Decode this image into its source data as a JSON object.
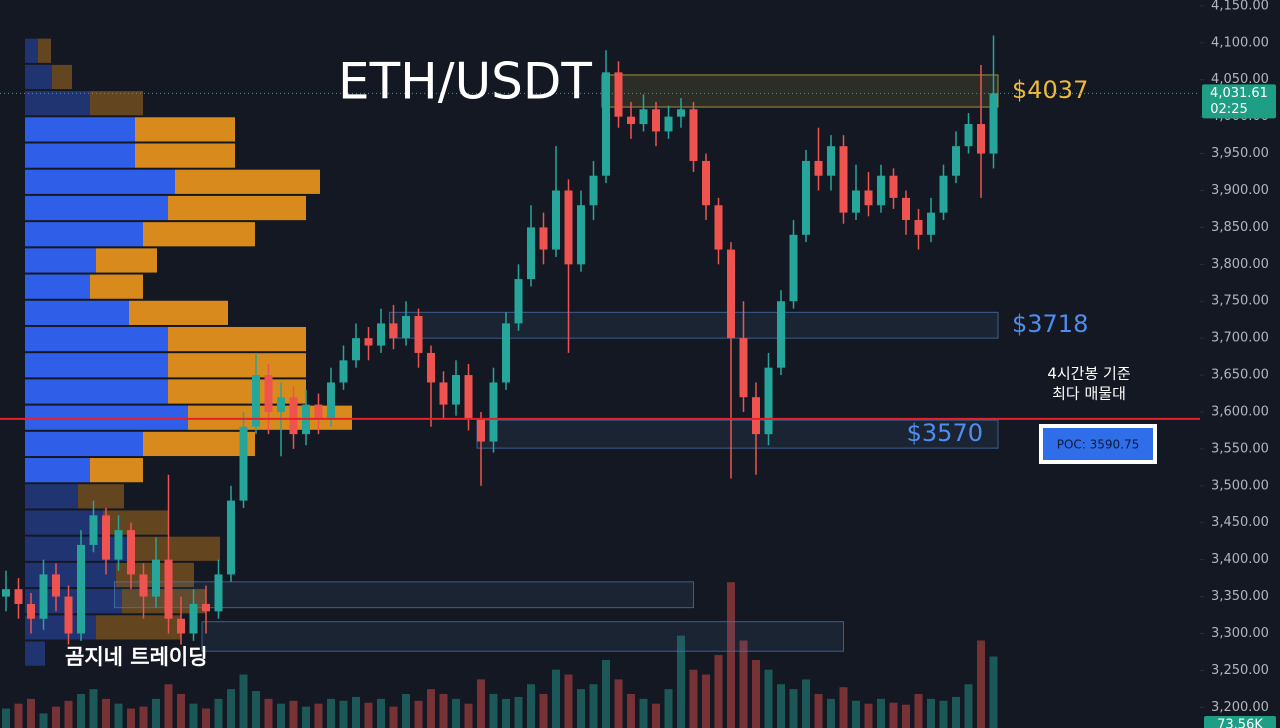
{
  "chart_data": {
    "type": "candlestick",
    "title": "ETH/USDT",
    "watermark": "곰지네 트레이딩",
    "ylim": [
      3172,
      4158
    ],
    "yticks": [
      {
        "value": 3200,
        "label": "3,200.00"
      },
      {
        "value": 3250,
        "label": "3,250.00"
      },
      {
        "value": 3300,
        "label": "3,300.00"
      },
      {
        "value": 3350,
        "label": "3,350.00"
      },
      {
        "value": 3400,
        "label": "3,400.00"
      },
      {
        "value": 3450,
        "label": "3,450.00"
      },
      {
        "value": 3500,
        "label": "3,500.00"
      },
      {
        "value": 3550,
        "label": "3,550.00"
      },
      {
        "value": 3600,
        "label": "3,600.00"
      },
      {
        "value": 3650,
        "label": "3,650.00"
      },
      {
        "value": 3700,
        "label": "3,700.00"
      },
      {
        "value": 3750,
        "label": "3,750.00"
      },
      {
        "value": 3800,
        "label": "3,800.00"
      },
      {
        "value": 3850,
        "label": "3,850.00"
      },
      {
        "value": 3900,
        "label": "3,900.00"
      },
      {
        "value": 3950,
        "label": "3,950.00"
      },
      {
        "value": 4000,
        "label": "4,000.00"
      },
      {
        "value": 4050,
        "label": "4,050.00"
      },
      {
        "value": 4100,
        "label": "4,100.00"
      },
      {
        "value": 4150,
        "label": "4,150.00"
      }
    ],
    "up_color": "#26a69a",
    "down_color": "#ef5350",
    "ohlc": [
      [
        3350,
        3385,
        3330,
        3360
      ],
      [
        3360,
        3375,
        3320,
        3340
      ],
      [
        3340,
        3355,
        3300,
        3320
      ],
      [
        3320,
        3400,
        3305,
        3380
      ],
      [
        3380,
        3395,
        3330,
        3350
      ],
      [
        3350,
        3365,
        3285,
        3300
      ],
      [
        3300,
        3440,
        3290,
        3420
      ],
      [
        3420,
        3480,
        3410,
        3460
      ],
      [
        3460,
        3470,
        3380,
        3400
      ],
      [
        3400,
        3460,
        3385,
        3440
      ],
      [
        3440,
        3450,
        3360,
        3380
      ],
      [
        3380,
        3395,
        3320,
        3350
      ],
      [
        3350,
        3430,
        3335,
        3400
      ],
      [
        3400,
        3515,
        3300,
        3320
      ],
      [
        3320,
        3350,
        3285,
        3300
      ],
      [
        3300,
        3360,
        3290,
        3340
      ],
      [
        3340,
        3365,
        3300,
        3330
      ],
      [
        3330,
        3400,
        3320,
        3380
      ],
      [
        3380,
        3500,
        3370,
        3480
      ],
      [
        3480,
        3600,
        3470,
        3580
      ],
      [
        3580,
        3680,
        3570,
        3650
      ],
      [
        3650,
        3665,
        3570,
        3600
      ],
      [
        3600,
        3640,
        3540,
        3620
      ],
      [
        3620,
        3635,
        3550,
        3570
      ],
      [
        3570,
        3630,
        3555,
        3610
      ],
      [
        3610,
        3625,
        3570,
        3590
      ],
      [
        3590,
        3660,
        3580,
        3640
      ],
      [
        3640,
        3690,
        3630,
        3670
      ],
      [
        3670,
        3720,
        3660,
        3700
      ],
      [
        3700,
        3715,
        3670,
        3690
      ],
      [
        3690,
        3740,
        3680,
        3720
      ],
      [
        3720,
        3745,
        3685,
        3700
      ],
      [
        3700,
        3750,
        3690,
        3730
      ],
      [
        3730,
        3740,
        3660,
        3680
      ],
      [
        3680,
        3690,
        3580,
        3640
      ],
      [
        3640,
        3655,
        3590,
        3610
      ],
      [
        3610,
        3670,
        3595,
        3650
      ],
      [
        3650,
        3665,
        3575,
        3590
      ],
      [
        3590,
        3600,
        3500,
        3560
      ],
      [
        3560,
        3660,
        3545,
        3640
      ],
      [
        3640,
        3735,
        3630,
        3720
      ],
      [
        3720,
        3800,
        3710,
        3780
      ],
      [
        3780,
        3880,
        3770,
        3850
      ],
      [
        3850,
        3870,
        3800,
        3820
      ],
      [
        3820,
        3960,
        3810,
        3900
      ],
      [
        3900,
        3915,
        3680,
        3800
      ],
      [
        3800,
        3900,
        3790,
        3880
      ],
      [
        3880,
        3940,
        3860,
        3920
      ],
      [
        3920,
        4090,
        3910,
        4060
      ],
      [
        4060,
        4075,
        3985,
        4000
      ],
      [
        4000,
        4020,
        3970,
        3990
      ],
      [
        3990,
        4030,
        3980,
        4010
      ],
      [
        4010,
        4020,
        3960,
        3980
      ],
      [
        3980,
        4015,
        3970,
        4000
      ],
      [
        4000,
        4025,
        3985,
        4010
      ],
      [
        4010,
        4020,
        3925,
        3940
      ],
      [
        3940,
        3950,
        3860,
        3880
      ],
      [
        3880,
        3890,
        3800,
        3820
      ],
      [
        3820,
        3830,
        3510,
        3700
      ],
      [
        3700,
        3750,
        3600,
        3620
      ],
      [
        3620,
        3640,
        3515,
        3570
      ],
      [
        3570,
        3680,
        3555,
        3660
      ],
      [
        3660,
        3765,
        3650,
        3750
      ],
      [
        3750,
        3860,
        3740,
        3840
      ],
      [
        3840,
        3955,
        3830,
        3940
      ],
      [
        3940,
        3985,
        3900,
        3920
      ],
      [
        3920,
        3975,
        3900,
        3960
      ],
      [
        3960,
        3975,
        3855,
        3870
      ],
      [
        3870,
        3935,
        3860,
        3900
      ],
      [
        3900,
        3925,
        3865,
        3880
      ],
      [
        3880,
        3935,
        3870,
        3920
      ],
      [
        3920,
        3930,
        3875,
        3890
      ],
      [
        3890,
        3900,
        3840,
        3860
      ],
      [
        3860,
        3875,
        3820,
        3840
      ],
      [
        3840,
        3890,
        3830,
        3870
      ],
      [
        3870,
        3935,
        3860,
        3920
      ],
      [
        3920,
        3980,
        3910,
        3960
      ],
      [
        3960,
        4005,
        3950,
        3990
      ],
      [
        3990,
        4070,
        3890,
        3950
      ],
      [
        3950,
        4110,
        3930,
        4031.61
      ]
    ],
    "last_price_label": "4,031.61",
    "countdown": "02:25",
    "volume_lim": [
      0,
      180
    ],
    "volume": [
      20,
      25,
      30,
      15,
      22,
      28,
      35,
      40,
      30,
      25,
      20,
      22,
      30,
      45,
      35,
      25,
      20,
      30,
      40,
      55,
      38,
      30,
      25,
      28,
      22,
      25,
      30,
      28,
      32,
      26,
      30,
      22,
      35,
      28,
      40,
      35,
      30,
      25,
      50,
      35,
      30,
      32,
      45,
      35,
      60,
      55,
      40,
      45,
      70,
      50,
      35,
      30,
      25,
      40,
      95,
      60,
      55,
      75,
      150,
      90,
      70,
      60,
      45,
      40,
      50,
      35,
      30,
      42,
      28,
      25,
      30,
      26,
      24,
      35,
      30,
      28,
      32,
      45,
      90,
      73.56
    ],
    "last_volume_label": "73.56K",
    "volume_profile": {
      "buy_color": "#2f5fe8",
      "sell_color": "#d98a1c",
      "value_area": [
        3503.5,
        4000.5
      ],
      "rows": [
        {
          "range": [
            4071.5,
            4107
          ],
          "buy": 13,
          "sell": 13
        },
        {
          "range": [
            4036,
            4071.5
          ],
          "buy": 27,
          "sell": 20
        },
        {
          "range": [
            4000.5,
            4036
          ],
          "buy": 65,
          "sell": 53
        },
        {
          "range": [
            3965,
            4000.5
          ],
          "buy": 110,
          "sell": 100
        },
        {
          "range": [
            3929.5,
            3965
          ],
          "buy": 110,
          "sell": 100
        },
        {
          "range": [
            3894,
            3929.5
          ],
          "buy": 150,
          "sell": 145
        },
        {
          "range": [
            3858.5,
            3894
          ],
          "buy": 143,
          "sell": 138
        },
        {
          "range": [
            3823,
            3858.5
          ],
          "buy": 118,
          "sell": 112
        },
        {
          "range": [
            3787.5,
            3823
          ],
          "buy": 71,
          "sell": 61
        },
        {
          "range": [
            3752,
            3787.5
          ],
          "buy": 65,
          "sell": 53
        },
        {
          "range": [
            3716.5,
            3752
          ],
          "buy": 104,
          "sell": 99
        },
        {
          "range": [
            3681,
            3716.5
          ],
          "buy": 143,
          "sell": 138
        },
        {
          "range": [
            3645.5,
            3681
          ],
          "buy": 143,
          "sell": 138
        },
        {
          "range": [
            3610,
            3645.5
          ],
          "buy": 143,
          "sell": 138
        },
        {
          "range": [
            3574.5,
            3610
          ],
          "buy": 163,
          "sell": 164
        },
        {
          "range": [
            3539,
            3574.5
          ],
          "buy": 118,
          "sell": 112
        },
        {
          "range": [
            3503.5,
            3539
          ],
          "buy": 65,
          "sell": 53
        },
        {
          "range": [
            3468,
            3503.5
          ],
          "buy": 53,
          "sell": 46
        },
        {
          "range": [
            3432.5,
            3468
          ],
          "buy": 78,
          "sell": 65
        },
        {
          "range": [
            3397,
            3432.5
          ],
          "buy": 104,
          "sell": 91
        },
        {
          "range": [
            3361.5,
            3397
          ],
          "buy": 91,
          "sell": 78
        },
        {
          "range": [
            3326,
            3361.5
          ],
          "buy": 97,
          "sell": 84
        },
        {
          "range": [
            3290.5,
            3326
          ],
          "buy": 71,
          "sell": 85
        },
        {
          "range": [
            3255,
            3290.5
          ],
          "buy": 20,
          "sell": 0
        }
      ]
    },
    "zones": [
      {
        "label": "$4037",
        "low": 4013,
        "high": 4056.5,
        "start": 48,
        "color": "#d6c24a",
        "label_color": "#f0b93a"
      },
      {
        "label": "$3718",
        "low": 3700,
        "high": 3735,
        "start": 31,
        "color": "#4f79b8",
        "label_color": "#4d8ef0"
      },
      {
        "label": "$3570",
        "low": 3551,
        "high": 3589,
        "start": 38,
        "color": "#4f79b8",
        "label_color": "#4d8ef0"
      },
      {
        "low": 3335,
        "high": 3370,
        "start": 9,
        "end": 55,
        "color": "#4f79b8"
      },
      {
        "low": 3276,
        "high": 3316,
        "start": 16,
        "end": 67,
        "color": "#4f79b8"
      }
    ],
    "poc": {
      "value": 3590.75,
      "label": "POC: 3590.75",
      "note": [
        "4시간봉 기준",
        "최다 매물대"
      ],
      "color": "#e8202a"
    }
  }
}
